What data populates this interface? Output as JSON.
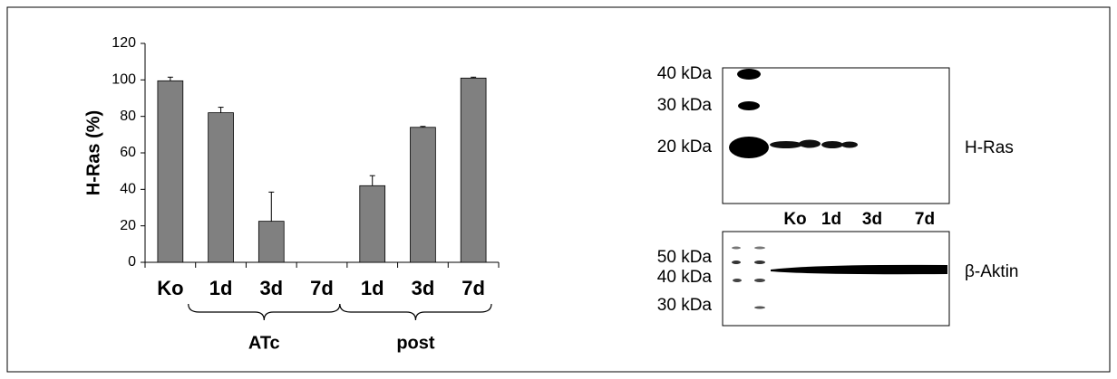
{
  "chart_data": {
    "type": "bar",
    "y_label": "H-Ras (%)",
    "categories": [
      "Ko",
      "1d",
      "3d",
      "7d",
      "1d",
      "3d",
      "7d"
    ],
    "values": [
      99.5,
      82,
      22.5,
      0,
      42,
      74,
      101
    ],
    "errors": [
      2,
      3,
      16,
      0,
      5.5,
      0.5,
      0.5
    ],
    "color": "#808080",
    "ylim": [
      0,
      120
    ],
    "yticks": [
      0,
      20,
      40,
      60,
      80,
      100,
      120
    ],
    "group_labels": [
      "ATc",
      "post"
    ]
  },
  "blot": {
    "top_markers": [
      "40 kDa",
      "30 kDa",
      "20 kDa"
    ],
    "top_label": "H-Ras",
    "lanes": [
      "Ko",
      "1d",
      "3d",
      "7d"
    ],
    "bottom_markers": [
      "50 kDa",
      "40 kDa",
      "30 kDa"
    ],
    "bottom_label": "β-Aktin"
  }
}
